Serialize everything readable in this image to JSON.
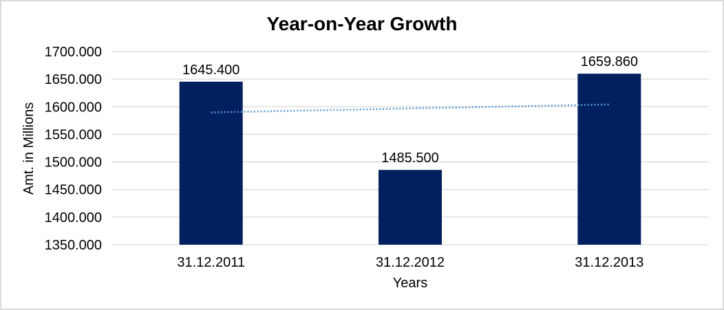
{
  "window": {
    "background_color": "#FFFFFF",
    "border_color": "#D9D9D9"
  },
  "chart_data": {
    "type": "bar",
    "title": "Year-on-Year Growth",
    "xlabel": "Years",
    "ylabel": "Amt. in Millions",
    "categories": [
      "31.12.2011",
      "31.12.2012",
      "31.12.2013"
    ],
    "values": [
      1645.4,
      1485.5,
      1659.86
    ],
    "data_labels": [
      "1645.400",
      "1485.500",
      "1659.860"
    ],
    "ylim": [
      1350,
      1700
    ],
    "ytick_step": 50,
    "ytick_labels": [
      "1350.000",
      "1400.000",
      "1450.000",
      "1500.000",
      "1550.000",
      "1600.000",
      "1650.000",
      "1700.000"
    ],
    "grid": "horizontal",
    "legend": "none",
    "bar_color": "#002060",
    "gridline_color": "#D9D9D9",
    "text_color": "#000000",
    "trendline": {
      "kind": "linear",
      "style": "dotted",
      "color": "#5B9BD5",
      "start_value": 1589.69,
      "end_value": 1604.15
    }
  }
}
